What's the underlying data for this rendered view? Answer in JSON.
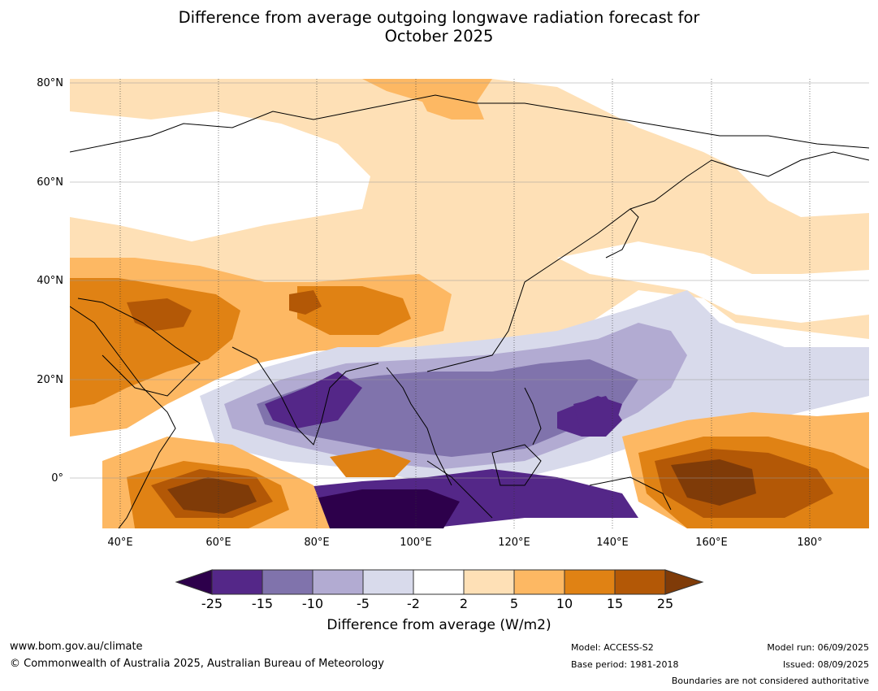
{
  "title": {
    "line1": "Difference from average outgoing longwave radiation forecast for",
    "line2": "October 2025"
  },
  "map": {
    "lat_labels": [
      "80°N",
      "60°N",
      "40°N",
      "20°N",
      "0°"
    ],
    "lon_labels": [
      "40°E",
      "60°E",
      "80°E",
      "100°E",
      "120°E",
      "140°E",
      "160°E",
      "180°"
    ]
  },
  "legend": {
    "ticks": [
      "-25",
      "-15",
      "-10",
      "-5",
      "-2",
      "2",
      "5",
      "10",
      "15",
      "25"
    ],
    "label": "Difference from average (W/m2)",
    "colors": {
      "lt_-25": "#2d004b",
      "-25_-15": "#542788",
      "-15_-10": "#8073ac",
      "-10_-5": "#b2abd2",
      "-5_-2": "#d8daeb",
      "-2_2": "#ffffff",
      "2_5": "#fee0b6",
      "5_10": "#fdb863",
      "10_15": "#e08214",
      "15_25": "#b35806",
      "gt_25": "#7f3b08"
    }
  },
  "footer": {
    "website": "www.bom.gov.au/climate",
    "copyright": "© Commonwealth of Australia 2025, Australian Bureau of Meteorology",
    "model": "Model: ACCESS-S2",
    "base_period": "Base period: 1981-2018",
    "model_run": "Model run: 06/09/2025",
    "issued": "Issued: 08/09/2025",
    "disclaimer": "Boundaries are not considered authoritative"
  }
}
